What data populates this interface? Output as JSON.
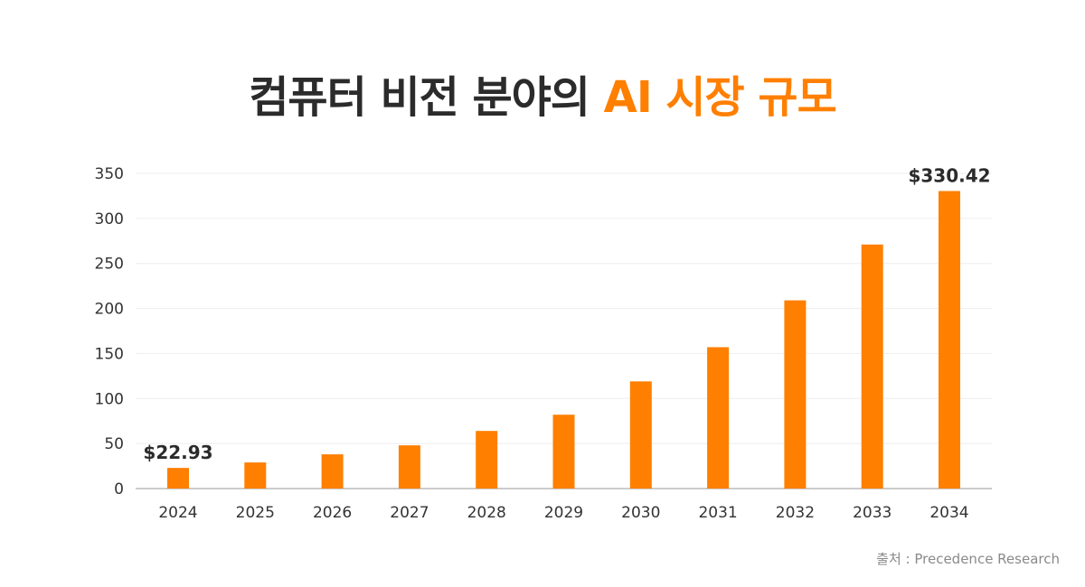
{
  "title": {
    "part1": "컴퓨터 비전 분야의",
    "accent": "AI 시장 규모"
  },
  "source": "출처 : Precedence Research",
  "colors": {
    "bar": "#ff7f00",
    "title": "#2b2b2b",
    "accent": "#ff7f00",
    "axis_text": "#333333",
    "grid": "#eeeeee",
    "baseline": "#bbbbbb"
  },
  "chart_data": {
    "type": "bar",
    "categories": [
      "2024",
      "2025",
      "2026",
      "2027",
      "2028",
      "2029",
      "2030",
      "2031",
      "2032",
      "2033",
      "2034"
    ],
    "values": [
      22.93,
      29,
      38,
      48,
      64,
      82,
      119,
      157,
      209,
      271,
      330.42
    ],
    "data_labels": [
      {
        "index": 0,
        "text": "$22.93"
      },
      {
        "index": 10,
        "text": "$330.42"
      }
    ],
    "yticks": [
      0,
      50,
      100,
      150,
      200,
      250,
      300,
      350
    ],
    "ylim": [
      0,
      350
    ],
    "grid": true,
    "legend": "none"
  }
}
